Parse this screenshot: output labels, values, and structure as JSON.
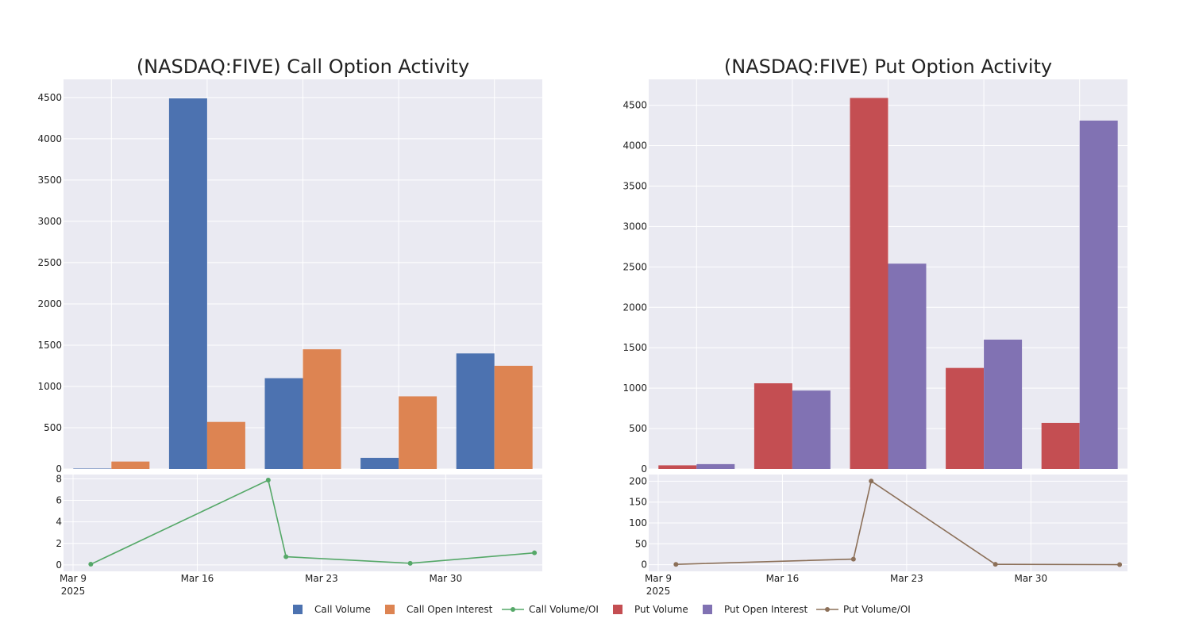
{
  "colors": {
    "call_volume": "#4c72b0",
    "call_open_interest": "#dd8452",
    "call_ratio": "#55a868",
    "put_volume": "#c44e52",
    "put_open_interest": "#8172b3",
    "put_ratio": "#8c7059",
    "plot_bg": "#eaeaf2",
    "grid": "#ffffff"
  },
  "chart_data": [
    {
      "type": "bar",
      "title": "(NASDAQ:FIVE) Call Option Activity",
      "x_dates": [
        "2025-03-10",
        "2025-03-20",
        "2025-03-21",
        "2025-03-28",
        "2025-04-04"
      ],
      "series": [
        {
          "name": "Call Volume",
          "values": [
            5,
            4490,
            1100,
            135,
            1400
          ]
        },
        {
          "name": "Call Open Interest",
          "values": [
            90,
            570,
            1450,
            880,
            1250
          ]
        }
      ],
      "ylim": [
        0,
        4720
      ],
      "yticks": [
        "0",
        "500",
        "1000",
        "1500",
        "2000",
        "2500",
        "3000",
        "3500",
        "4000",
        "4500"
      ],
      "ratio": {
        "type": "line",
        "name": "Call Volume/OI",
        "values": [
          0.06,
          7.88,
          0.76,
          0.15,
          1.12
        ],
        "ylim": [
          -0.6,
          8.4
        ],
        "yticks": [
          "0",
          "2",
          "4",
          "6",
          "8"
        ]
      },
      "xticks": [
        "Mar 9",
        "Mar 16",
        "Mar 23",
        "Mar 30"
      ],
      "xtick_year": "2025"
    },
    {
      "type": "bar",
      "title": "(NASDAQ:FIVE) Put Option Activity",
      "x_dates": [
        "2025-03-10",
        "2025-03-20",
        "2025-03-21",
        "2025-03-28",
        "2025-04-04"
      ],
      "series": [
        {
          "name": "Put Volume",
          "values": [
            45,
            1060,
            4590,
            1250,
            570
          ]
        },
        {
          "name": "Put Open Interest",
          "values": [
            60,
            970,
            2540,
            1600,
            4310
          ]
        }
      ],
      "ylim": [
        0,
        4820
      ],
      "yticks": [
        "0",
        "500",
        "1000",
        "1500",
        "2000",
        "2500",
        "3000",
        "3500",
        "4000",
        "4500"
      ],
      "ratio": {
        "type": "line",
        "name": "Put Volume/OI",
        "values": [
          0.75,
          13.3,
          200.4,
          0.8,
          0.13
        ],
        "ylim": [
          -16,
          216
        ],
        "yticks": [
          "0",
          "50",
          "100",
          "150",
          "200"
        ]
      },
      "xticks": [
        "Mar 9",
        "Mar 16",
        "Mar 23",
        "Mar 30"
      ],
      "xtick_year": "2025"
    }
  ],
  "legend": [
    {
      "label": "Call Volume",
      "kind": "square",
      "color_key": "call_volume"
    },
    {
      "label": "Call Open Interest",
      "kind": "square",
      "color_key": "call_open_interest"
    },
    {
      "label": "Call Volume/OI",
      "kind": "line",
      "color_key": "call_ratio"
    },
    {
      "label": "Put Volume",
      "kind": "square",
      "color_key": "put_volume"
    },
    {
      "label": "Put Open Interest",
      "kind": "square",
      "color_key": "put_open_interest"
    },
    {
      "label": "Put Volume/OI",
      "kind": "line",
      "color_key": "put_ratio"
    }
  ]
}
